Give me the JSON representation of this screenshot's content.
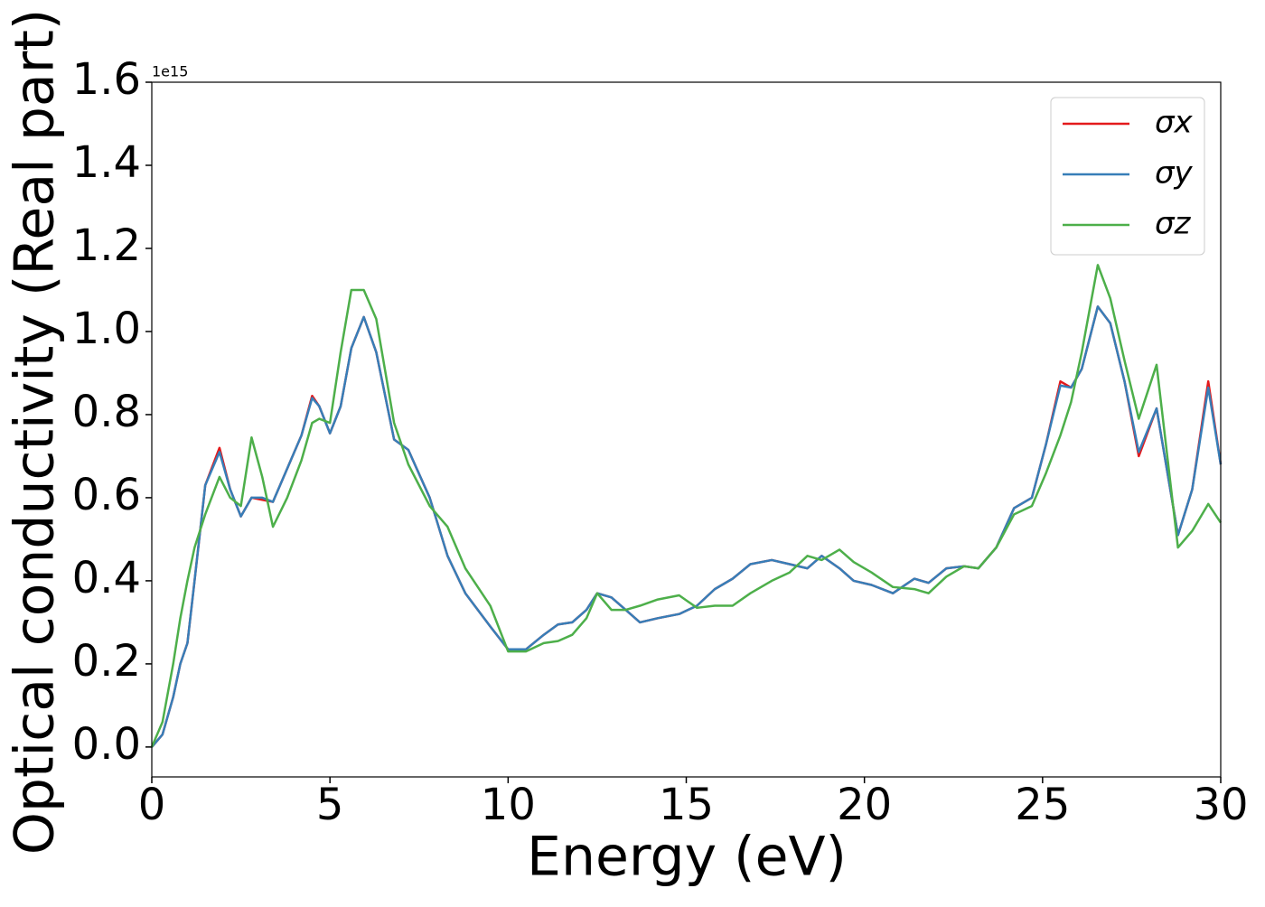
{
  "chart_data": {
    "type": "line",
    "xlabel": "Energy (eV)",
    "ylabel": "Optical conductivity (Real part)",
    "y_offset_text": "1e15",
    "x": [
      0,
      0.3,
      0.6,
      0.8,
      1.0,
      1.2,
      1.5,
      1.9,
      2.2,
      2.5,
      2.8,
      3.1,
      3.4,
      3.8,
      4.2,
      4.5,
      4.7,
      5.0,
      5.3,
      5.6,
      5.95,
      6.3,
      6.8,
      7.2,
      7.8,
      8.3,
      8.8,
      9.5,
      10.0,
      10.5,
      11.0,
      11.4,
      11.8,
      12.2,
      12.5,
      12.9,
      13.3,
      13.7,
      14.2,
      14.8,
      15.3,
      15.8,
      16.3,
      16.8,
      17.4,
      17.9,
      18.4,
      18.8,
      19.3,
      19.7,
      20.2,
      20.8,
      21.4,
      21.8,
      22.3,
      22.8,
      23.2,
      23.7,
      24.2,
      24.7,
      25.1,
      25.5,
      25.8,
      26.1,
      26.55,
      26.9,
      27.3,
      27.7,
      28.2,
      28.8,
      29.2,
      29.65,
      30.0
    ],
    "series": [
      {
        "name": "σx",
        "color": "#e41a1c",
        "values": [
          0.0,
          0.03,
          0.12,
          0.2,
          0.25,
          0.4,
          0.63,
          0.72,
          0.62,
          0.555,
          0.6,
          0.595,
          0.59,
          0.67,
          0.75,
          0.845,
          0.82,
          0.755,
          0.82,
          0.96,
          1.035,
          0.95,
          0.74,
          0.715,
          0.6,
          0.46,
          0.37,
          0.29,
          0.235,
          0.235,
          0.27,
          0.295,
          0.3,
          0.33,
          0.37,
          0.36,
          0.33,
          0.3,
          0.31,
          0.32,
          0.34,
          0.38,
          0.405,
          0.44,
          0.45,
          0.44,
          0.43,
          0.46,
          0.43,
          0.4,
          0.39,
          0.37,
          0.405,
          0.395,
          0.43,
          0.435,
          0.43,
          0.48,
          0.575,
          0.6,
          0.73,
          0.88,
          0.865,
          0.91,
          1.06,
          1.02,
          0.88,
          0.7,
          0.815,
          0.51,
          0.62,
          0.88,
          0.68
        ]
      },
      {
        "name": "σy",
        "color": "#377eb8",
        "values": [
          0.0,
          0.03,
          0.12,
          0.2,
          0.25,
          0.4,
          0.63,
          0.71,
          0.62,
          0.555,
          0.6,
          0.6,
          0.59,
          0.67,
          0.75,
          0.84,
          0.82,
          0.755,
          0.82,
          0.96,
          1.035,
          0.95,
          0.74,
          0.715,
          0.6,
          0.46,
          0.37,
          0.29,
          0.235,
          0.235,
          0.27,
          0.295,
          0.3,
          0.33,
          0.37,
          0.36,
          0.33,
          0.3,
          0.31,
          0.32,
          0.34,
          0.38,
          0.405,
          0.44,
          0.45,
          0.44,
          0.43,
          0.46,
          0.43,
          0.4,
          0.39,
          0.37,
          0.405,
          0.395,
          0.43,
          0.435,
          0.43,
          0.48,
          0.575,
          0.6,
          0.73,
          0.87,
          0.865,
          0.91,
          1.06,
          1.02,
          0.88,
          0.71,
          0.815,
          0.51,
          0.62,
          0.865,
          0.68
        ]
      },
      {
        "name": "σz",
        "color": "#4daf4a",
        "values": [
          0.0,
          0.06,
          0.2,
          0.31,
          0.4,
          0.48,
          0.56,
          0.65,
          0.6,
          0.58,
          0.745,
          0.65,
          0.53,
          0.6,
          0.69,
          0.78,
          0.79,
          0.78,
          0.95,
          1.1,
          1.1,
          1.03,
          0.78,
          0.68,
          0.58,
          0.53,
          0.43,
          0.34,
          0.23,
          0.23,
          0.25,
          0.255,
          0.27,
          0.31,
          0.37,
          0.33,
          0.33,
          0.34,
          0.355,
          0.365,
          0.335,
          0.34,
          0.34,
          0.37,
          0.4,
          0.42,
          0.46,
          0.45,
          0.475,
          0.445,
          0.42,
          0.385,
          0.38,
          0.37,
          0.41,
          0.435,
          0.43,
          0.48,
          0.56,
          0.58,
          0.66,
          0.75,
          0.83,
          0.95,
          1.16,
          1.08,
          0.93,
          0.79,
          0.92,
          0.48,
          0.52,
          0.585,
          0.54
        ]
      }
    ],
    "xlim": [
      0,
      30
    ],
    "xticks": [
      0,
      5,
      10,
      15,
      20,
      25,
      30
    ],
    "ylim": [
      -0.072,
      1.6
    ],
    "yticks": [
      {
        "value": 0,
        "label": "0.0"
      },
      0.2,
      0.4,
      0.6,
      0.8,
      {
        "value": 1,
        "label": "1.0"
      },
      1.2,
      1.4,
      1.6
    ],
    "grid": false,
    "legend": "upper right"
  }
}
